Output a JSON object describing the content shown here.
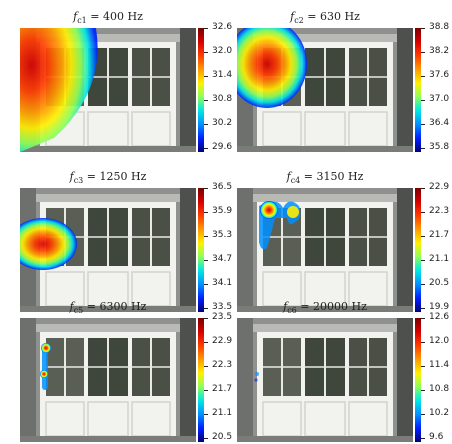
{
  "panels": [
    {
      "label_sub": "c1",
      "freq": "400 Hz",
      "ticks": [
        "32.6",
        "32.0",
        "31.4",
        "30.8",
        "30.2",
        "29.6"
      ]
    },
    {
      "label_sub": "c2",
      "freq": "630 Hz",
      "ticks": [
        "38.8",
        "38.2",
        "37.6",
        "37.0",
        "36.4",
        "35.8"
      ]
    },
    {
      "label_sub": "c3",
      "freq": "1250 Hz",
      "ticks": [
        "36.5",
        "35.9",
        "35.3",
        "34.7",
        "34.1",
        "33.5"
      ]
    },
    {
      "label_sub": "c4",
      "freq": "3150 Hz",
      "ticks": [
        "22.9",
        "22.3",
        "21.7",
        "21.1",
        "20.5",
        "19.9"
      ]
    },
    {
      "label_sub": "c5",
      "freq": "6300 Hz",
      "ticks": [
        "23.5",
        "22.9",
        "22.3",
        "21.7",
        "21.1",
        "20.5"
      ]
    },
    {
      "label_sub": "c6",
      "freq": "20000 Hz",
      "ticks": [
        "12.6",
        "12.0",
        "11.4",
        "10.8",
        "10.2",
        "9.6"
      ]
    }
  ],
  "colormap": [
    "#7a0000",
    "#d40000",
    "#ff3c00",
    "#ff9a00",
    "#fff000",
    "#8dff5a",
    "#00e6e6",
    "#0090ff",
    "#0020ff",
    "#00007a"
  ]
}
